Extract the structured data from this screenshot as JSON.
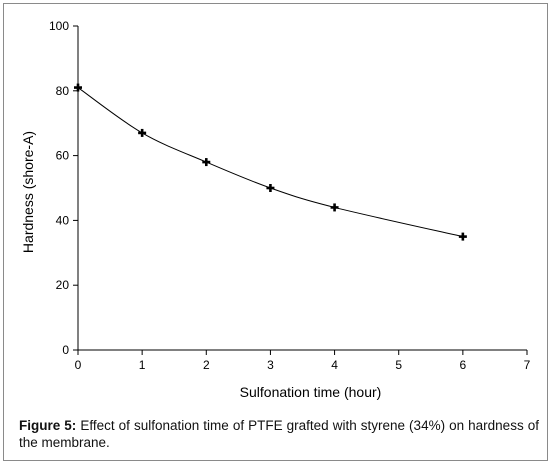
{
  "chart_data": {
    "type": "line",
    "title": "",
    "xlabel": "Sulfonation time (hour)",
    "ylabel": "Hardness (shore-A)",
    "xlim": [
      0,
      7
    ],
    "ylim": [
      0,
      100
    ],
    "x_ticks": [
      "0",
      "1",
      "2",
      "3",
      "4",
      "5",
      "6",
      "7"
    ],
    "y_ticks": [
      "0",
      "20",
      "40",
      "60",
      "80",
      "100"
    ],
    "grid": false,
    "legend": "none",
    "series": [
      {
        "x": [
          0,
          1,
          2,
          3,
          4,
          6
        ],
        "y": [
          81,
          67,
          58,
          50,
          44,
          35
        ],
        "marker": "plus",
        "color": "#000000"
      }
    ]
  },
  "caption": {
    "label": "Figure 5:",
    "text": "Effect of sulfonation time of PTFE grafted with styrene (34%) on hardness of the membrane."
  }
}
